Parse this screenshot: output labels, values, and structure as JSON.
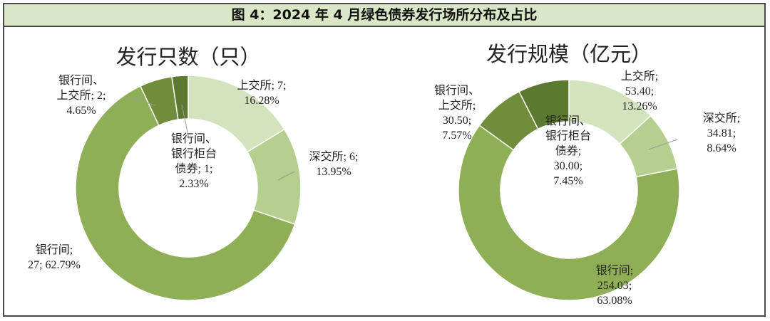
{
  "figure_title": "图 4：2024 年 4 月绿色债券发行场所分布及占比",
  "chart_data": [
    {
      "type": "pie",
      "title": "发行只数（只）",
      "slices": [
        {
          "label_lines": [
            "上交所; 7;",
            "16.28%"
          ],
          "value": 7,
          "percent": 16.28,
          "color": "#d3e3bd"
        },
        {
          "label_lines": [
            "深交所; 6;",
            "13.95%"
          ],
          "value": 6,
          "percent": 13.95,
          "color": "#b4cf8f"
        },
        {
          "label_lines": [
            "银行间;",
            "27; 62.79%"
          ],
          "value": 27,
          "percent": 62.79,
          "color": "#8faf57"
        },
        {
          "label_lines": [
            "银行间、",
            "上交所; 2;",
            "4.65%"
          ],
          "value": 2,
          "percent": 4.65,
          "color": "#6f8d3b"
        },
        {
          "label_lines": [
            "银行间、",
            "银行柜台",
            "债券; 1;",
            "2.33%"
          ],
          "value": 1,
          "percent": 2.33,
          "color": "#5c7a2f"
        }
      ]
    },
    {
      "type": "pie",
      "title": "发行规模（亿元）",
      "slices": [
        {
          "label_lines": [
            "上交所;",
            "53.40;",
            "13.26%"
          ],
          "value": 53.4,
          "percent": 13.26,
          "color": "#d3e3bd"
        },
        {
          "label_lines": [
            "深交所;",
            "34.81;",
            "8.64%"
          ],
          "value": 34.81,
          "percent": 8.64,
          "color": "#b4cf8f"
        },
        {
          "label_lines": [
            "银行间;",
            "254.03;",
            "63.08%"
          ],
          "value": 254.03,
          "percent": 63.08,
          "color": "#8faf57"
        },
        {
          "label_lines": [
            "银行间、",
            "上交所;",
            "30.50;",
            "7.57%"
          ],
          "value": 30.5,
          "percent": 7.57,
          "color": "#6f8d3b"
        },
        {
          "label_lines": [
            "银行间、",
            "银行柜台",
            "债券;",
            "30.00;",
            "7.45%"
          ],
          "value": 30.0,
          "percent": 7.45,
          "color": "#5c7a2f"
        }
      ]
    }
  ]
}
